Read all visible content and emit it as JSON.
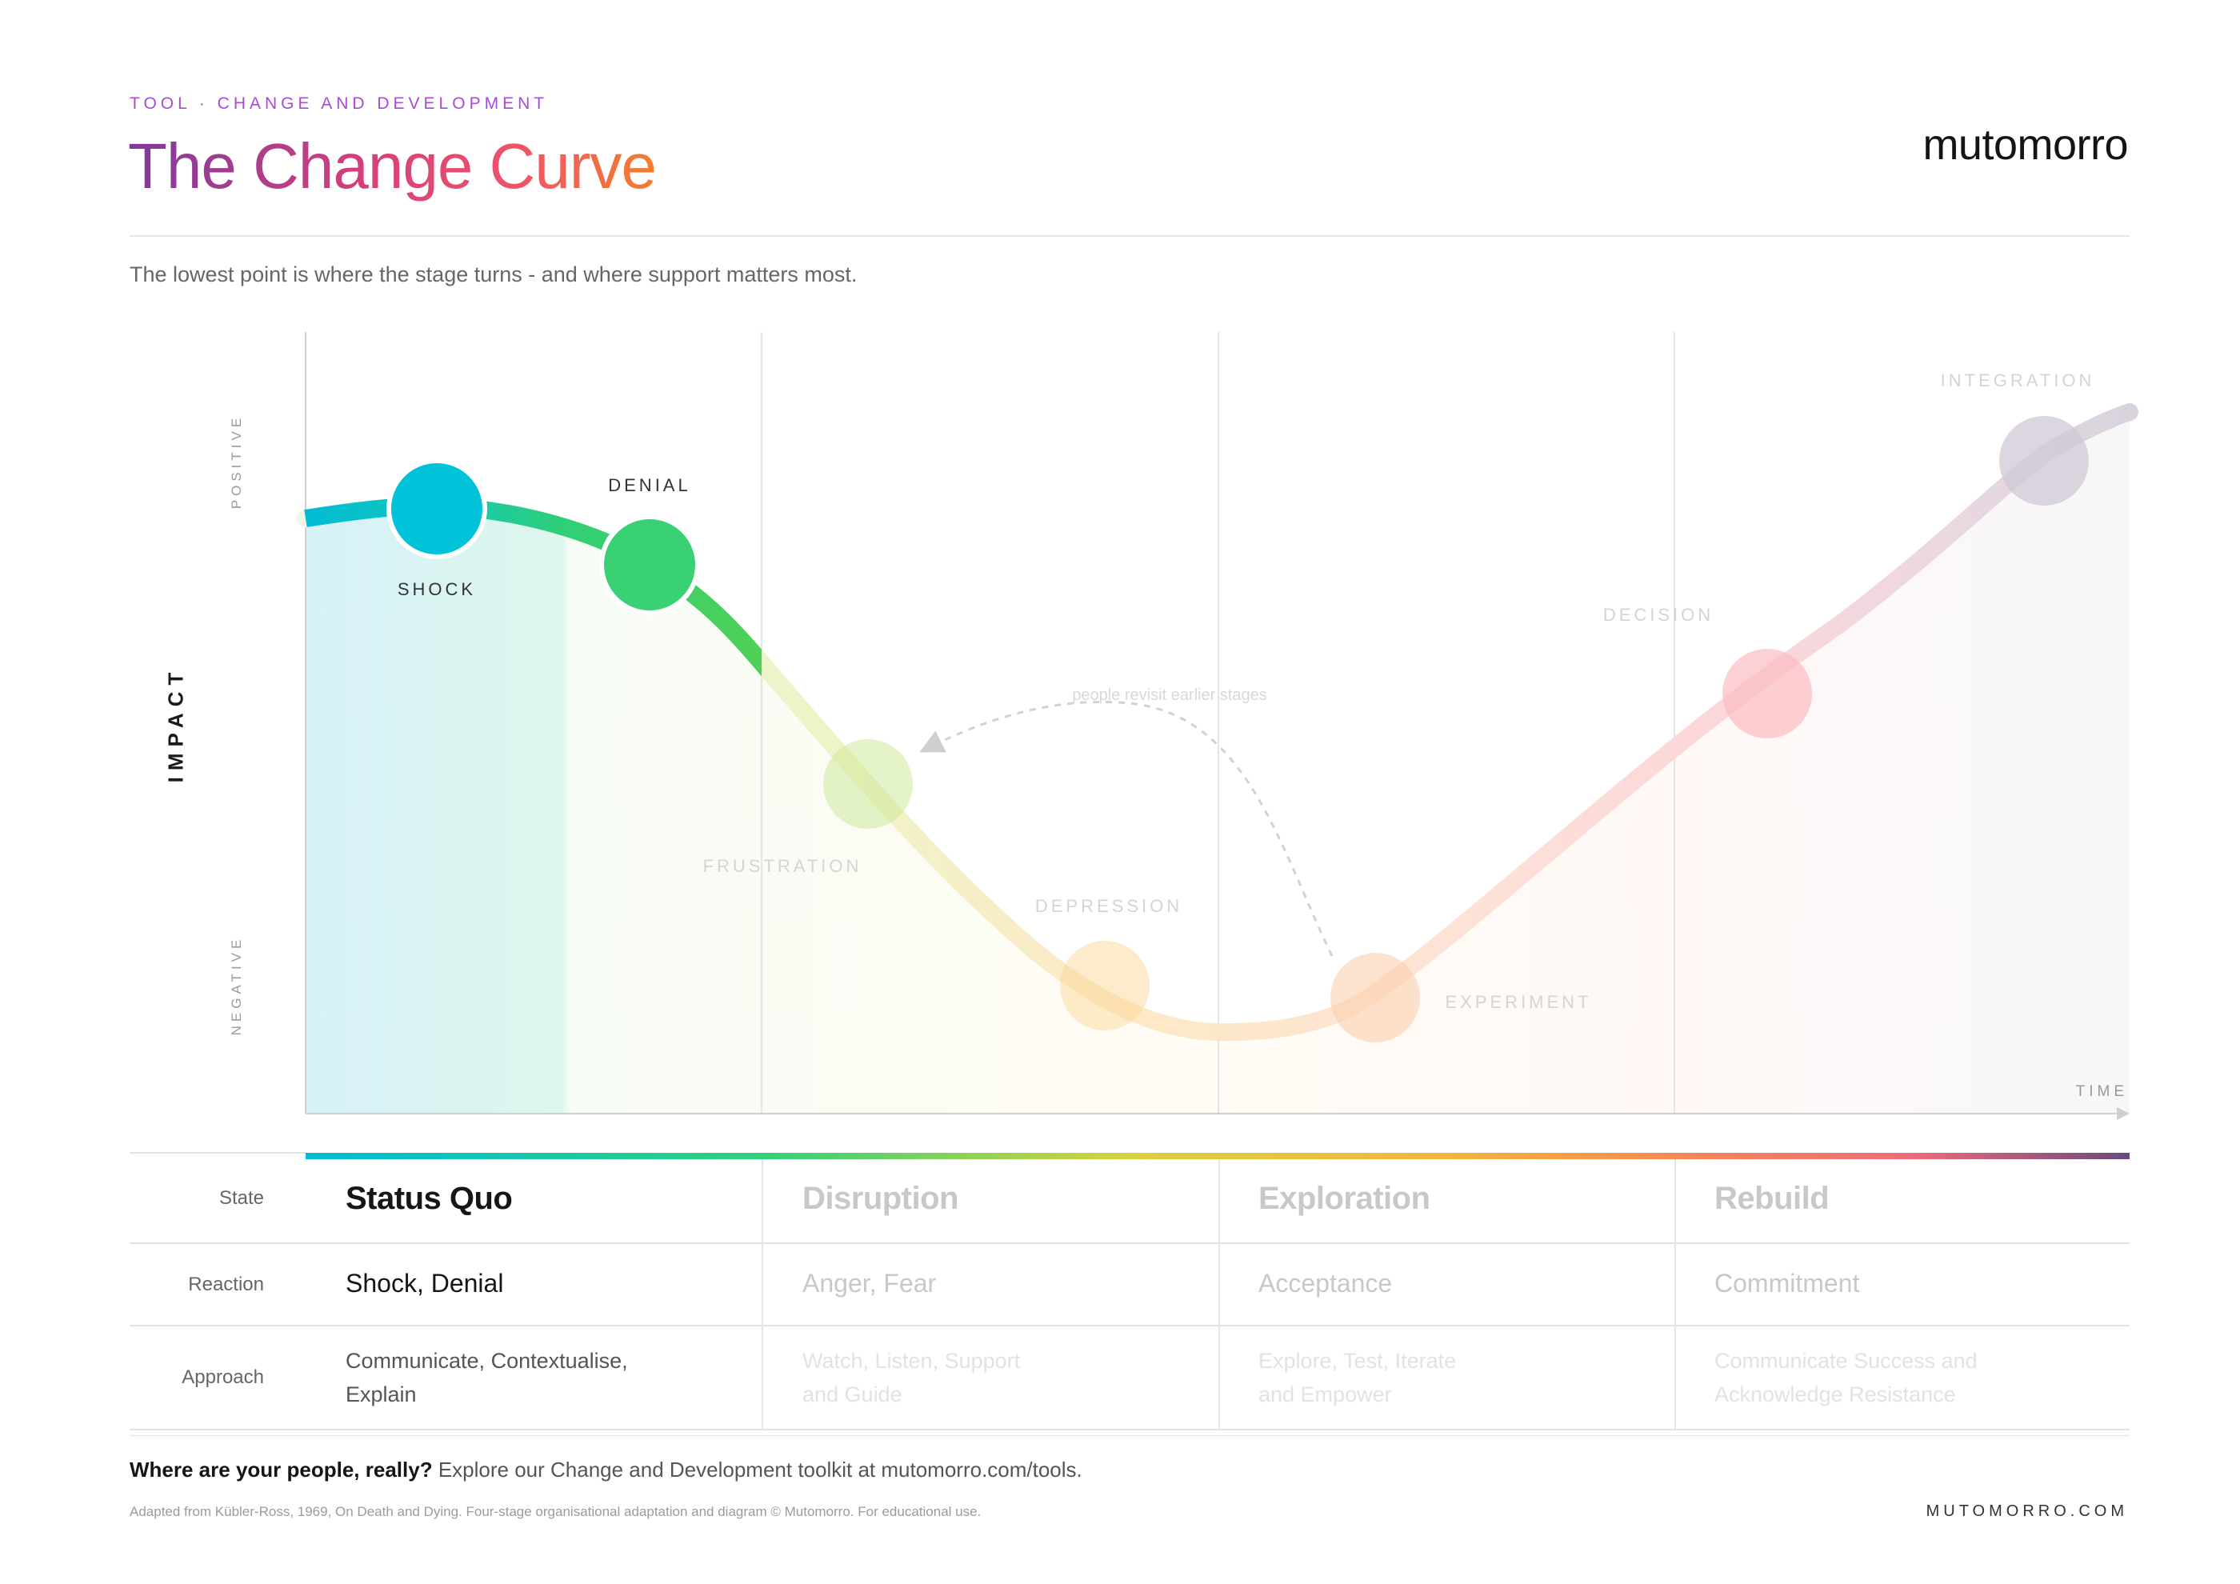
{
  "header": {
    "eyebrow": "TOOL · CHANGE AND DEVELOPMENT",
    "title": "The Change Curve",
    "brand": "mutomorro"
  },
  "subtitle": "The lowest point is where the stage turns - and where support matters most.",
  "diagram": {
    "y_axis": {
      "label": "IMPACT",
      "top": "POSITIVE",
      "bottom": "NEGATIVE"
    },
    "x_axis": {
      "label": "TIME"
    },
    "annotation": "people revisit earlier stages",
    "active_phase": "Status Quo",
    "stages": [
      {
        "name": "SHOCK",
        "color": "#00c2d8",
        "phase": "Status Quo"
      },
      {
        "name": "DENIAL",
        "color": "#38d073",
        "phase": "Status Quo"
      },
      {
        "name": "FRUSTRATION",
        "color": "#cde99a",
        "phase": "Disruption"
      },
      {
        "name": "DEPRESSION",
        "color": "#fbdc9c",
        "phase": "Disruption"
      },
      {
        "name": "EXPERIMENT",
        "color": "#fbd0b0",
        "phase": "Exploration"
      },
      {
        "name": "DECISION",
        "color": "#fbc3c8",
        "phase": "Rebuild"
      },
      {
        "name": "INTEGRATION",
        "color": "#d3cdd8",
        "phase": "Rebuild"
      }
    ]
  },
  "table": {
    "row_labels": {
      "state": "State",
      "reaction": "Reaction",
      "approach": "Approach"
    },
    "columns": [
      {
        "state": "Status Quo",
        "reaction": "Shock, Denial",
        "approach": "Communicate, Contextualise, Explain"
      },
      {
        "state": "Disruption",
        "reaction": "Anger, Fear",
        "approach": "Watch, Listen, Support and Guide"
      },
      {
        "state": "Exploration",
        "reaction": "Acceptance",
        "approach": "Explore, Test, Iterate and Empower"
      },
      {
        "state": "Rebuild",
        "reaction": "Commitment",
        "approach": "Communicate Success and Acknowledge Resistance"
      }
    ]
  },
  "footer": {
    "cta_bold": "Where are your people, really?",
    "cta_text": "Explore our Change and Development toolkit at mutomorro.com/tools.",
    "credit": "Adapted from Kübler-Ross, 1969, On Death and Dying. Four-stage organisational adaptation and diagram © Mutomorro. For educational use.",
    "url": "MUTOMORRO.COM"
  }
}
